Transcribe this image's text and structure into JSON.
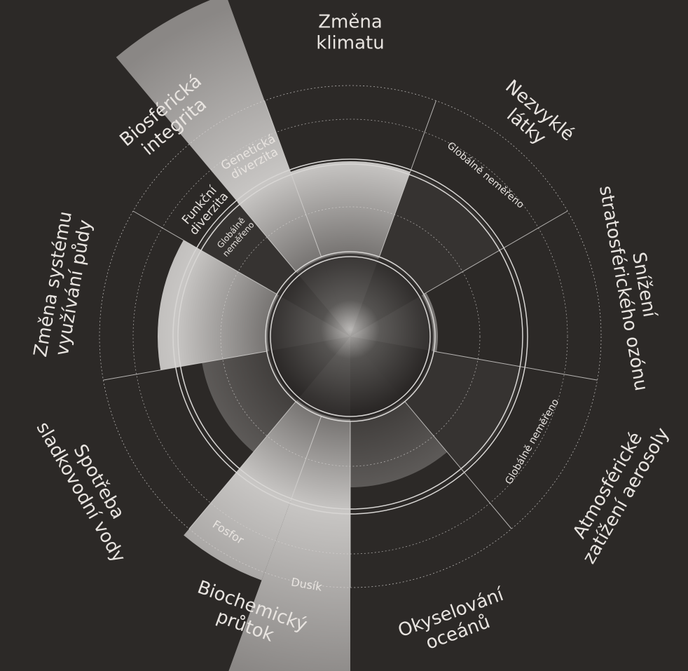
{
  "boundaries": [
    {
      "label": [
        "Změna",
        "klimatu"
      ]
    },
    {
      "label": [
        "Nezvyklé",
        "látky"
      ],
      "sublabel": [
        "Globálně neměřeno"
      ]
    },
    {
      "label": [
        "Snížení",
        "stratosférického ozónu"
      ]
    },
    {
      "label": [
        "Atmosférické",
        "zatížení aerosoly"
      ],
      "sublabel": [
        "Globálně neměřeno"
      ]
    },
    {
      "label": [
        "Okyselování",
        "oceánů"
      ]
    },
    {
      "label": [
        "Biochemický",
        "průtok"
      ],
      "parts": [
        {
          "label": [
            "Dusík"
          ]
        },
        {
          "label": [
            "Fosfor"
          ]
        }
      ]
    },
    {
      "label": [
        "Spotřeba",
        "sladkovodní vody"
      ]
    },
    {
      "label": [
        "Změna systému",
        "využívání půdy"
      ]
    },
    {
      "label": [
        "Biosférická",
        "integrita"
      ],
      "parts": [
        {
          "label": [
            "Funkční",
            "diverzita"
          ],
          "sublabel": [
            "Globálně",
            "neměřeno"
          ]
        },
        {
          "label": [
            "Genetická",
            "diverzita"
          ]
        }
      ]
    }
  ]
}
